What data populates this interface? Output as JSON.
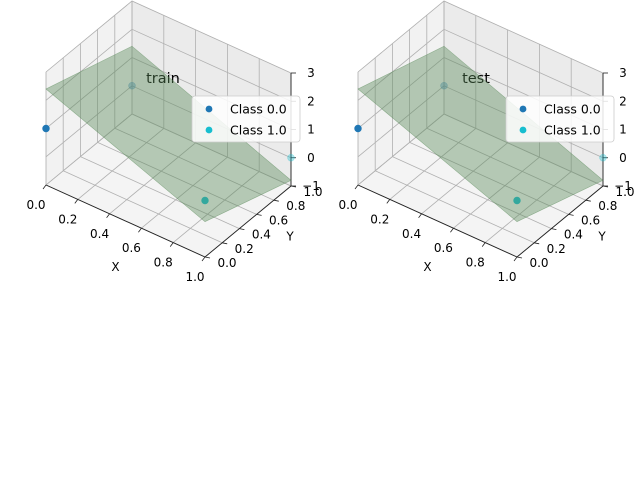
{
  "chart_data": [
    {
      "type": "scatter",
      "projection": "3d",
      "title": "train",
      "xlabel": "X",
      "ylabel": "Y",
      "zlabel": "",
      "xticks": [
        "0.0",
        "0.2",
        "0.4",
        "0.6",
        "0.8",
        "1.0"
      ],
      "yticks": [
        "0.0",
        "0.2",
        "0.4",
        "0.6",
        "0.8",
        "1.0"
      ],
      "zticks": [
        "−1",
        "0",
        "1",
        "2",
        "3"
      ],
      "xlim": [
        0,
        1
      ],
      "ylim": [
        0,
        1
      ],
      "zlim": [
        -1,
        3
      ],
      "grid": true,
      "legend_position": "top-right",
      "series": [
        {
          "name": "Class 0.0",
          "color": "#1f77b4",
          "points": [
            {
              "x": 0.0,
              "y": 0.0,
              "z": 1.0
            },
            {
              "x": 0.0,
              "y": 1.0,
              "z": 0.0
            }
          ]
        },
        {
          "name": "Class 1.0",
          "color": "#17becf",
          "points": [
            {
              "x": 1.0,
              "y": 0.0,
              "z": 1.0
            },
            {
              "x": 1.0,
              "y": 1.0,
              "z": 0.0
            }
          ]
        }
      ],
      "surface": {
        "color": "#5a8a5a",
        "corners": [
          {
            "x": 0,
            "y": 0,
            "z": 2.4
          },
          {
            "x": 1,
            "y": 0,
            "z": 0.25
          },
          {
            "x": 1,
            "y": 1,
            "z": -0.8
          },
          {
            "x": 0,
            "y": 1,
            "z": 1.4
          }
        ]
      }
    },
    {
      "type": "scatter",
      "projection": "3d",
      "title": "test",
      "xlabel": "X",
      "ylabel": "Y",
      "zlabel": "",
      "xticks": [
        "0.0",
        "0.2",
        "0.4",
        "0.6",
        "0.8",
        "1.0"
      ],
      "yticks": [
        "0.0",
        "0.2",
        "0.4",
        "0.6",
        "0.8",
        "1.0"
      ],
      "zticks": [
        "−1",
        "0",
        "1",
        "2",
        "3"
      ],
      "xlim": [
        0,
        1
      ],
      "ylim": [
        0,
        1
      ],
      "zlim": [
        -1,
        3
      ],
      "grid": true,
      "legend_position": "top-right",
      "series": [
        {
          "name": "Class 0.0",
          "color": "#1f77b4",
          "points": [
            {
              "x": 0.0,
              "y": 0.0,
              "z": 1.0
            },
            {
              "x": 0.0,
              "y": 1.0,
              "z": 0.0
            }
          ]
        },
        {
          "name": "Class 1.0",
          "color": "#17becf",
          "points": [
            {
              "x": 1.0,
              "y": 0.0,
              "z": 1.0
            },
            {
              "x": 1.0,
              "y": 1.0,
              "z": 0.0
            }
          ]
        }
      ],
      "surface": {
        "color": "#5a8a5a",
        "corners": [
          {
            "x": 0,
            "y": 0,
            "z": 2.4
          },
          {
            "x": 1,
            "y": 0,
            "z": 0.25
          },
          {
            "x": 1,
            "y": 1,
            "z": -0.8
          },
          {
            "x": 0,
            "y": 1,
            "z": 1.4
          }
        ]
      }
    }
  ]
}
